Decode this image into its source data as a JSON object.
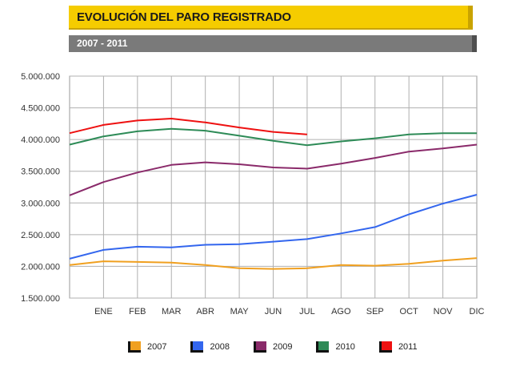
{
  "header": {
    "title": "EVOLUCIÓN DEL PARO REGISTRADO",
    "subtitle": "2007 - 2011"
  },
  "chart_data": {
    "type": "line",
    "title": "EVOLUCIÓN DEL PARO REGISTRADO",
    "subtitle": "2007 - 2011",
    "categories": [
      "",
      "ENE",
      "FEB",
      "MAR",
      "ABR",
      "MAY",
      "JUN",
      "JUL",
      "AGO",
      "SEP",
      "OCT",
      "NOV",
      "DIC"
    ],
    "ylim": [
      1500000,
      5000000
    ],
    "yticks": [
      5000000,
      4500000,
      4000000,
      3500000,
      3000000,
      2500000,
      2000000,
      1500000
    ],
    "ytick_labels": [
      "5.000.000",
      "4.500.000",
      "4.000.000",
      "3.500.000",
      "3.000.000",
      "2.500.000",
      "2.000.000",
      "1.500.000"
    ],
    "grid": true,
    "legend_position": "bottom",
    "series": [
      {
        "name": "2007",
        "color": "#f0a020",
        "values": [
          2020000,
          2080000,
          2070000,
          2060000,
          2020000,
          1970000,
          1960000,
          1970000,
          2020000,
          2010000,
          2040000,
          2090000,
          2130000
        ]
      },
      {
        "name": "2008",
        "color": "#3366ee",
        "values": [
          2120000,
          2260000,
          2310000,
          2300000,
          2340000,
          2350000,
          2390000,
          2430000,
          2520000,
          2620000,
          2820000,
          2990000,
          3130000
        ]
      },
      {
        "name": "2009",
        "color": "#8a2a6a",
        "values": [
          3120000,
          3330000,
          3480000,
          3600000,
          3640000,
          3610000,
          3560000,
          3540000,
          3620000,
          3710000,
          3810000,
          3860000,
          3920000
        ]
      },
      {
        "name": "2010",
        "color": "#2e8b57",
        "values": [
          3920000,
          4050000,
          4130000,
          4170000,
          4140000,
          4060000,
          3980000,
          3910000,
          3970000,
          4020000,
          4080000,
          4100000,
          4100000
        ]
      },
      {
        "name": "2011",
        "color": "#ee1111",
        "values": [
          4100000,
          4230000,
          4300000,
          4330000,
          4270000,
          4190000,
          4120000,
          4080000,
          null,
          null,
          null,
          null,
          null
        ]
      }
    ]
  }
}
